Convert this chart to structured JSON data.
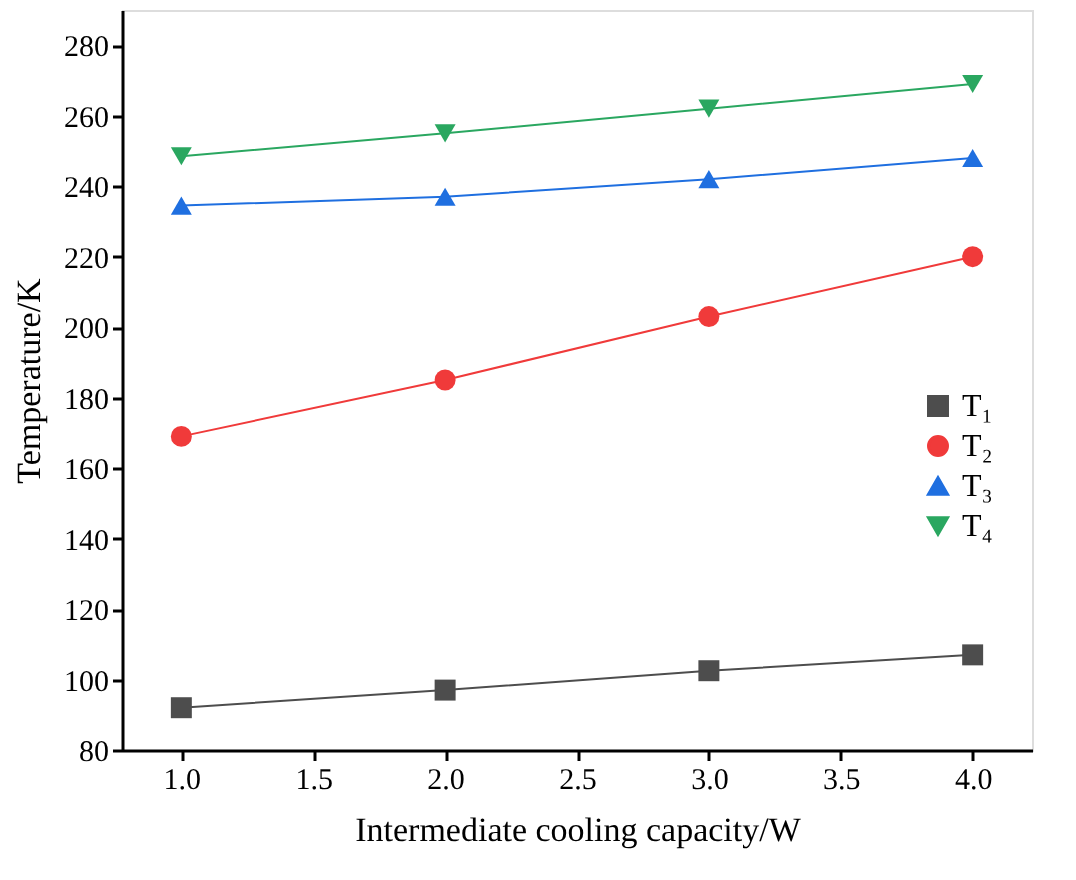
{
  "chart_data": {
    "type": "line",
    "xlabel": "Intermediate cooling capacity/W",
    "ylabel": "Temperature/K",
    "x": [
      1.0,
      2.0,
      3.0,
      4.0
    ],
    "series": [
      {
        "name": "T₁",
        "color": "#4d4d4d",
        "marker": "square",
        "values": [
          92,
          97,
          102.5,
          107
        ]
      },
      {
        "name": "T₂",
        "color": "#f03a3a",
        "marker": "circle",
        "values": [
          169,
          185,
          203,
          220
        ]
      },
      {
        "name": "T₃",
        "color": "#1f6fe0",
        "marker": "triangle",
        "values": [
          234.5,
          237,
          242,
          248
        ]
      },
      {
        "name": "T₄",
        "color": "#2aa760",
        "marker": "triangle-down",
        "values": [
          248.5,
          255,
          262,
          269
        ]
      }
    ],
    "xlim": [
      0.775,
      4.225
    ],
    "xticks": [
      {
        "value": 1.0,
        "label": "1.0"
      },
      {
        "value": 1.5,
        "label": "1.5"
      },
      {
        "value": 2.0,
        "label": "2.0"
      },
      {
        "value": 2.5,
        "label": "2.5"
      },
      {
        "value": 3.0,
        "label": "3.0"
      },
      {
        "value": 3.5,
        "label": "3.5"
      },
      {
        "value": 4.0,
        "label": "4.0"
      }
    ],
    "ylim": [
      80,
      290
    ],
    "yticks": [
      80,
      100,
      120,
      140,
      160,
      180,
      200,
      220,
      240,
      260,
      280
    ],
    "grid": false,
    "legend": "right",
    "line_style": "solid"
  }
}
